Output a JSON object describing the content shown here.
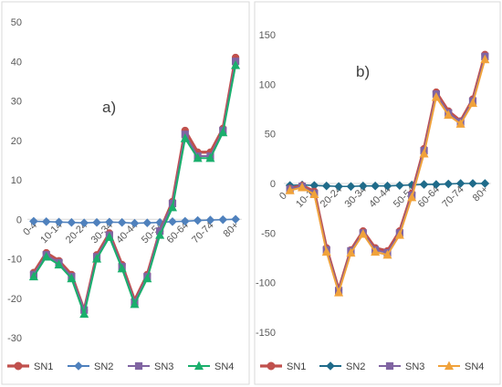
{
  "chart_data": [
    {
      "type": "line",
      "panel_label": "a)",
      "categories": [
        "0-4",
        "5-9",
        "10-14",
        "15-19",
        "20-24",
        "25-29",
        "30-34",
        "35-39",
        "40-44",
        "45-49",
        "50-54",
        "55-59",
        "60-64",
        "65-69",
        "70-74",
        "75-79",
        "80+"
      ],
      "x_tick_labels": [
        "0-4",
        "",
        "10-14",
        "",
        "20-24",
        "",
        "30-34",
        "",
        "40-44",
        "",
        "50-54",
        "",
        "60-64",
        "",
        "70-74",
        "",
        "80+"
      ],
      "ylim": [
        -30,
        50
      ],
      "y_ticks": [
        -30,
        -20,
        -10,
        0,
        10,
        20,
        30,
        40,
        50
      ],
      "grid": false,
      "legend_position": "bottom",
      "series": [
        {
          "name": "SN1",
          "color": "#c0504d",
          "marker": "circle",
          "values": [
            -13.5,
            -8.5,
            -10.5,
            -14,
            -23,
            -9,
            -3.5,
            -11.5,
            -20.5,
            -14,
            -3,
            4.5,
            22.5,
            17,
            17,
            23,
            41
          ]
        },
        {
          "name": "SN2",
          "color": "#4f81bd",
          "marker": "diamond",
          "values": [
            -0.5,
            -0.6,
            -0.7,
            -0.8,
            -0.9,
            -0.8,
            -0.7,
            -0.8,
            -1,
            -0.9,
            -0.8,
            -0.6,
            -0.5,
            -0.3,
            -0.2,
            -0.1,
            0
          ]
        },
        {
          "name": "SN3",
          "color": "#8064a2",
          "marker": "square",
          "values": [
            -14,
            -9,
            -11,
            -14.5,
            -23,
            -9.5,
            -4,
            -12,
            -21,
            -14.5,
            -3,
            4,
            21.5,
            16,
            16,
            22.5,
            40
          ]
        },
        {
          "name": "SN4",
          "color": "#1aaf6c",
          "marker": "triangle",
          "values": [
            -14.5,
            -9.5,
            -11.5,
            -15,
            -24,
            -10,
            -4.5,
            -12.5,
            -21.5,
            -15,
            -4,
            3,
            20.5,
            15.5,
            15.5,
            22,
            39
          ]
        }
      ]
    },
    {
      "type": "line",
      "panel_label": "b)",
      "categories": [
        "0-4",
        "5-9",
        "10-14",
        "15-19",
        "20-24",
        "25-29",
        "30-34",
        "35-39",
        "40-44",
        "45-49",
        "50-54",
        "55-59",
        "60-64",
        "65-69",
        "70-74",
        "75-79",
        "80+"
      ],
      "x_tick_labels": [
        "0-4",
        "",
        "10-14",
        "",
        "20-24",
        "",
        "30-34",
        "",
        "40-44",
        "",
        "50-54",
        "",
        "60-64",
        "",
        "70-74",
        "",
        "80+"
      ],
      "ylim": [
        -150,
        150
      ],
      "y_ticks": [
        -150,
        -100,
        -50,
        0,
        50,
        100,
        150
      ],
      "grid": false,
      "legend_position": "bottom",
      "series": [
        {
          "name": "SN1",
          "color": "#c0504d",
          "marker": "circle",
          "values": [
            -5,
            -2,
            -8,
            -65,
            -107,
            -67,
            -48,
            -65,
            -68,
            -48,
            -10,
            35,
            92,
            73,
            63,
            85,
            130
          ]
        },
        {
          "name": "SN2",
          "color": "#1f6b8a",
          "marker": "diamond",
          "values": [
            -2,
            -1.5,
            -2,
            -2.5,
            -3,
            -3,
            -2.5,
            -2.5,
            -2.5,
            -2,
            -1.5,
            -1,
            -1,
            -0.5,
            0,
            0,
            0
          ]
        },
        {
          "name": "SN3",
          "color": "#8064a2",
          "marker": "square",
          "values": [
            -6,
            -3,
            -10,
            -67,
            -108,
            -68,
            -50,
            -67,
            -70,
            -50,
            -12,
            33,
            90,
            71,
            62,
            83,
            128
          ]
        },
        {
          "name": "SN4",
          "color": "#f0a23b",
          "marker": "triangle",
          "values": [
            -7,
            -4,
            -11,
            -69,
            -110,
            -70,
            -51,
            -69,
            -72,
            -52,
            -14,
            30,
            87,
            69,
            60,
            81,
            125
          ]
        }
      ]
    }
  ]
}
